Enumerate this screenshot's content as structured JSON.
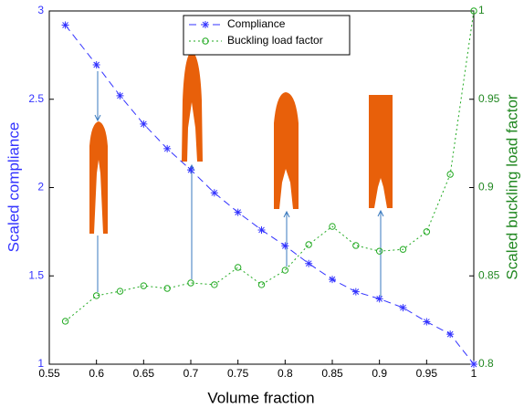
{
  "chart_data": {
    "type": "line",
    "xlabel": "Volume fraction",
    "ylabel": "Scaled compliance",
    "y2label": "Scaled buckling load factor",
    "x": [
      0.567,
      0.6,
      0.625,
      0.65,
      0.675,
      0.7,
      0.725,
      0.75,
      0.775,
      0.8,
      0.825,
      0.85,
      0.875,
      0.9,
      0.925,
      0.95,
      0.975,
      1.0
    ],
    "series": [
      {
        "name": "Compliance",
        "color": "#3333ff",
        "marker": "asterisk",
        "dash": "8,5",
        "values": [
          2.92,
          2.695,
          2.52,
          2.36,
          2.22,
          2.1,
          1.97,
          1.86,
          1.76,
          1.67,
          1.57,
          1.48,
          1.41,
          1.37,
          1.32,
          1.24,
          1.17,
          1.0
        ]
      },
      {
        "name": "Buckling load factor",
        "color": "#22aa22",
        "marker": "circle",
        "dash": "2,3",
        "axis": "y2",
        "values": [
          0.8243,
          0.8388,
          0.8413,
          0.8444,
          0.8429,
          0.846,
          0.845,
          0.8548,
          0.845,
          0.8532,
          0.8677,
          0.878,
          0.8672,
          0.864,
          0.865,
          0.875,
          0.9075,
          1.0
        ]
      }
    ],
    "xlim": [
      0.55,
      1
    ],
    "xticks": [
      0.55,
      0.6,
      0.65,
      0.7,
      0.75,
      0.8,
      0.85,
      0.9,
      0.95,
      1
    ],
    "ylim": [
      1,
      3
    ],
    "yticks": [
      1,
      1.5,
      2,
      2.5,
      3
    ],
    "y2lim": [
      0.8,
      1
    ],
    "y2ticks": [
      0.8,
      0.85,
      0.9,
      0.95,
      1
    ],
    "grid": false,
    "legend": "top"
  }
}
